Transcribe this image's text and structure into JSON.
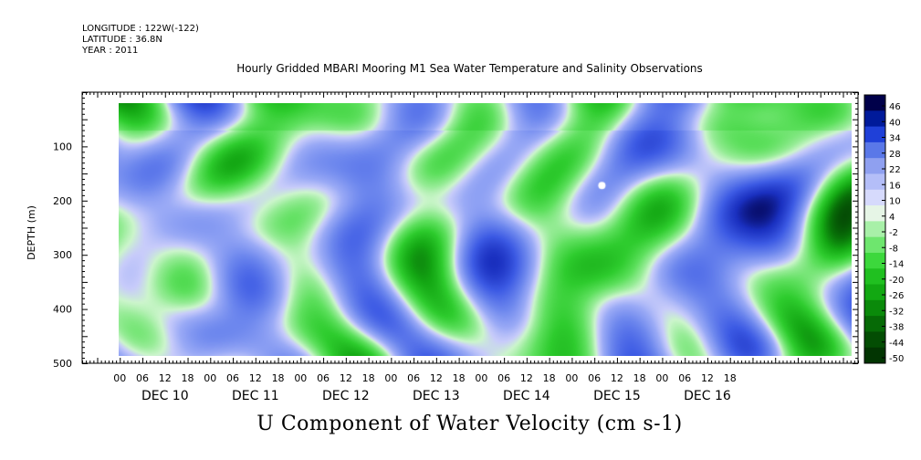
{
  "header": {
    "longitude": "LONGITUDE : 122W(-122)",
    "latitude": "LATITUDE : 36.8N",
    "year": "YEAR : 2011"
  },
  "chart_data": {
    "type": "heatmap",
    "title": "Hourly Gridded MBARI Mooring M1 Sea Water Temperature and Salinity Observations",
    "subtitle": "U Component of Water Velocity (cm s-1)",
    "xlabel": "",
    "ylabel": "DEPTH (m)",
    "x_range_hours": [
      -10,
      196
    ],
    "x_data_start_hours": 3,
    "x_data_end_hours": 193,
    "y_range_m": [
      0,
      500
    ],
    "y_data_range_m": [
      10,
      490
    ],
    "y_ticks": [
      100,
      200,
      300,
      400,
      500
    ],
    "hour_ticks": [
      "00",
      "06",
      "12",
      "18",
      "00",
      "06",
      "12",
      "18",
      "00",
      "06",
      "12",
      "18",
      "00",
      "06",
      "12",
      "18",
      "00",
      "06",
      "12",
      "18",
      "00",
      "06",
      "12",
      "18",
      "00",
      "06",
      "12",
      "18"
    ],
    "day_labels": [
      "DEC 10",
      "DEC 11",
      "DEC 12",
      "DEC 13",
      "DEC 14",
      "DEC 15",
      "DEC 16"
    ],
    "colorbar_labels": [
      "46",
      "40",
      "34",
      "28",
      "22",
      "16",
      "10",
      "4",
      "-2",
      "-8",
      "-14",
      "-20",
      "-26",
      "-32",
      "-38",
      "-44",
      "-50"
    ],
    "colorbar_range": [
      -50,
      52
    ],
    "colorbar_colors": [
      "#00004a",
      "#001a9a",
      "#1f40d8",
      "#5a78e8",
      "#8fa0f0",
      "#b4bef8",
      "#d6dafc",
      "#e6f5e6",
      "#a8f0a8",
      "#6ee66e",
      "#3cd83c",
      "#20c020",
      "#12a812",
      "#0a8a0a",
      "#066a06",
      "#034d03",
      "#023502"
    ],
    "palette_stops": [
      {
        "v": -50,
        "c": "#00004a"
      },
      {
        "v": -38,
        "c": "#1a30c0"
      },
      {
        "v": -26,
        "c": "#3c5ae4"
      },
      {
        "v": -14,
        "c": "#6e88ee"
      },
      {
        "v": -6,
        "c": "#9aaaf6"
      },
      {
        "v": -1,
        "c": "#c8ccfa"
      },
      {
        "v": 2,
        "c": "#ccf5cc"
      },
      {
        "v": 6,
        "c": "#96ec96"
      },
      {
        "v": 12,
        "c": "#5ee05e"
      },
      {
        "v": 20,
        "c": "#2ecc2e"
      },
      {
        "v": 30,
        "c": "#14a814"
      },
      {
        "v": 40,
        "c": "#087008"
      },
      {
        "v": 52,
        "c": "#023502"
      }
    ]
  }
}
